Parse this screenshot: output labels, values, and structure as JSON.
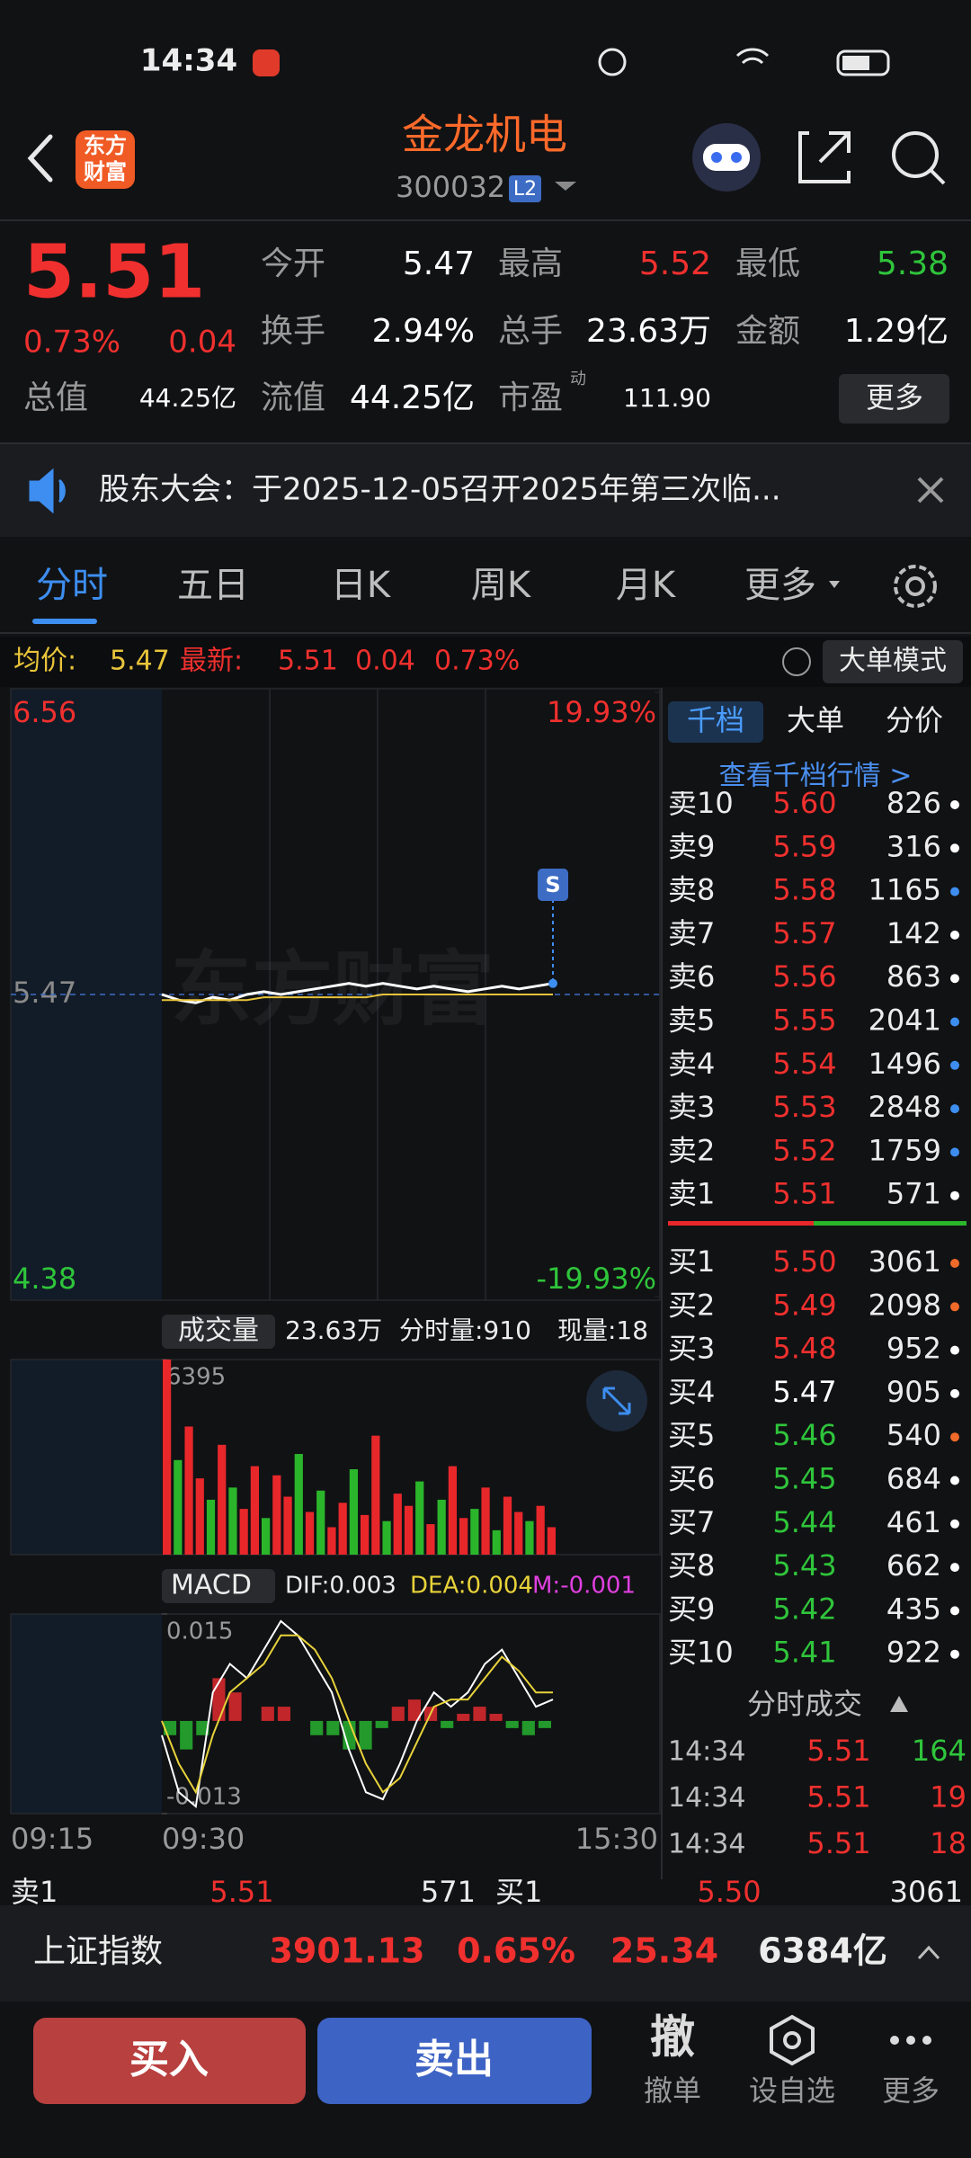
{
  "status": {
    "time": "14:34"
  },
  "header": {
    "logo_line1": "东方",
    "logo_line2": "财富",
    "title": "金龙机电",
    "code": "300032",
    "badge": "L2"
  },
  "quote": {
    "price": "5.51",
    "pct": "0.73%",
    "change": "0.04",
    "fields": [
      {
        "label": "今开",
        "value": "5.47",
        "color": "#ffffff"
      },
      {
        "label": "最高",
        "value": "5.52",
        "color": "#f0302e"
      },
      {
        "label": "最低",
        "value": "5.38",
        "color": "#2fc53b"
      },
      {
        "label": "换手",
        "value": "2.94%",
        "color": "#ffffff"
      },
      {
        "label": "总手",
        "value": "23.63万",
        "color": "#ffffff"
      },
      {
        "label": "金额",
        "value": "1.29亿",
        "color": "#ffffff"
      },
      {
        "label": "总值",
        "value": "44.25亿",
        "color": "#ffffff"
      },
      {
        "label": "流值",
        "value": "44.25亿",
        "color": "#ffffff"
      },
      {
        "label": "市盈",
        "value": "111.90",
        "color": "#ffffff",
        "sup": "动"
      }
    ],
    "more": "更多"
  },
  "notice": {
    "text": "股东大会：于2025-12-05召开2025年第三次临..."
  },
  "tabs": [
    "分时",
    "五日",
    "日K",
    "周K",
    "月K",
    "更多"
  ],
  "info": {
    "avg_label": "均价:",
    "avg": "5.47",
    "latest_label": "最新:",
    "latest": "5.51",
    "change": "0.04",
    "pct": "0.73%",
    "mode": "大单模式"
  },
  "price_chart": {
    "type": "line",
    "watermark": "东方财富",
    "signal": "S",
    "ylim": [
      4.38,
      6.56
    ],
    "yticks": [
      6.56,
      5.47,
      4.38
    ],
    "y2lim": [
      -19.93,
      19.93
    ],
    "y2ticks": [
      {
        "value": 19.93,
        "label": "19.93%"
      },
      {
        "value": -19.93,
        "label": "-19.93%"
      }
    ],
    "series": [
      {
        "name": "最新",
        "color": "#ffffff",
        "values": [
          5.47,
          5.45,
          5.44,
          5.46,
          5.45,
          5.47,
          5.48,
          5.47,
          5.48,
          5.49,
          5.5,
          5.51,
          5.5,
          5.51,
          5.5,
          5.49,
          5.5,
          5.49,
          5.48,
          5.49,
          5.5,
          5.49,
          5.5,
          5.51
        ]
      },
      {
        "name": "均价",
        "color": "#e8c43a",
        "values": [
          5.45,
          5.45,
          5.45,
          5.45,
          5.45,
          5.45,
          5.46,
          5.46,
          5.46,
          5.46,
          5.46,
          5.46,
          5.46,
          5.47,
          5.47,
          5.47,
          5.47,
          5.47,
          5.47,
          5.47,
          5.47,
          5.47,
          5.47,
          5.47
        ]
      }
    ],
    "time_labels": [
      "09:15",
      "09:30",
      "15:30"
    ]
  },
  "volume_chart": {
    "type": "bar",
    "title": "成交量",
    "total": "23.63万",
    "minute": "分时量:910",
    "current": "现量:18",
    "ylim": [
      0,
      6395
    ],
    "yticks": [
      6395
    ],
    "values": [
      6395,
      3100,
      4200,
      2500,
      1800,
      3600,
      2200,
      1500,
      2900,
      1200,
      2600,
      1900,
      3300,
      1400,
      2100,
      900,
      1700,
      2800,
      1300,
      3900,
      1100,
      2000,
      1600,
      2400,
      1000,
      1800,
      2900,
      1200,
      1500,
      2200,
      800,
      1900,
      1400,
      1100,
      1600,
      900
    ],
    "colors": [
      "#e8272b",
      "#2bb52b",
      "#e8272b",
      "#e8272b",
      "#2bb52b",
      "#e8272b",
      "#2bb52b",
      "#e8272b",
      "#e8272b",
      "#2bb52b",
      "#e8272b",
      "#e8272b",
      "#2bb52b",
      "#e8272b",
      "#2bb52b",
      "#e8272b",
      "#e8272b",
      "#2bb52b",
      "#e8272b",
      "#e8272b",
      "#2bb52b",
      "#e8272b",
      "#e8272b",
      "#2bb52b",
      "#e8272b",
      "#2bb52b",
      "#e8272b",
      "#e8272b",
      "#2bb52b",
      "#e8272b",
      "#2bb52b",
      "#e8272b",
      "#e8272b",
      "#2bb52b",
      "#e8272b",
      "#e8272b"
    ]
  },
  "macd_chart": {
    "type": "macd",
    "title": "MACD",
    "dif": "DIF:0.003",
    "dea": "DEA:0.004",
    "m": "M:-0.001",
    "ylim": [
      -0.013,
      0.015
    ],
    "yticks": [
      0.015,
      -0.013
    ],
    "hist": [
      -0.002,
      -0.004,
      -0.002,
      0.006,
      0.004,
      0,
      0.002,
      0.002,
      0,
      -0.002,
      -0.002,
      -0.004,
      -0.004,
      -0.001,
      0.002,
      0.003,
      0.002,
      -0.001,
      0.001,
      0.002,
      0.001,
      -0.001,
      -0.002,
      -0.001
    ],
    "series": [
      {
        "name": "DIF",
        "color": "#ffffff",
        "values": [
          -0.002,
          -0.01,
          -0.012,
          0.004,
          0.008,
          0.006,
          0.01,
          0.014,
          0.012,
          0.008,
          0.004,
          -0.004,
          -0.01,
          -0.011,
          -0.006,
          0.0,
          0.004,
          0.002,
          0.004,
          0.008,
          0.01,
          0.006,
          0.002,
          0.003
        ]
      },
      {
        "name": "DEA",
        "color": "#e8d33a",
        "values": [
          0.0,
          -0.006,
          -0.01,
          -0.002,
          0.004,
          0.006,
          0.008,
          0.012,
          0.012,
          0.01,
          0.006,
          0.0,
          -0.006,
          -0.01,
          -0.008,
          -0.003,
          0.002,
          0.003,
          0.003,
          0.006,
          0.009,
          0.007,
          0.004,
          0.004
        ]
      }
    ]
  },
  "book": {
    "tabs": [
      "千档",
      "大单",
      "分价"
    ],
    "link": "查看千档行情 >",
    "sell": [
      {
        "label": "卖10",
        "price": "5.60",
        "vol": "826",
        "color": "#f0302e",
        "dot": "#ffffff"
      },
      {
        "label": "卖9",
        "price": "5.59",
        "vol": "316",
        "color": "#f0302e",
        "dot": "#ffffff"
      },
      {
        "label": "卖8",
        "price": "5.58",
        "vol": "1165",
        "color": "#f0302e",
        "dot": "#3d8ef0"
      },
      {
        "label": "卖7",
        "price": "5.57",
        "vol": "142",
        "color": "#f0302e",
        "dot": "#ffffff"
      },
      {
        "label": "卖6",
        "price": "5.56",
        "vol": "863",
        "color": "#f0302e",
        "dot": "#ffffff"
      },
      {
        "label": "卖5",
        "price": "5.55",
        "vol": "2041",
        "color": "#f0302e",
        "dot": "#3d8ef0"
      },
      {
        "label": "卖4",
        "price": "5.54",
        "vol": "1496",
        "color": "#f0302e",
        "dot": "#3d8ef0"
      },
      {
        "label": "卖3",
        "price": "5.53",
        "vol": "2848",
        "color": "#f0302e",
        "dot": "#3d8ef0"
      },
      {
        "label": "卖2",
        "price": "5.52",
        "vol": "1759",
        "color": "#f0302e",
        "dot": "#3d8ef0"
      },
      {
        "label": "卖1",
        "price": "5.51",
        "vol": "571",
        "color": "#f0302e",
        "dot": "#ffffff"
      }
    ],
    "buy": [
      {
        "label": "买1",
        "price": "5.50",
        "vol": "3061",
        "color": "#f0302e",
        "dot": "#f06a2a"
      },
      {
        "label": "买2",
        "price": "5.49",
        "vol": "2098",
        "color": "#f0302e",
        "dot": "#f06a2a"
      },
      {
        "label": "买3",
        "price": "5.48",
        "vol": "952",
        "color": "#f0302e",
        "dot": "#ffffff"
      },
      {
        "label": "买4",
        "price": "5.47",
        "vol": "905",
        "color": "#ffffff",
        "dot": "#ffffff"
      },
      {
        "label": "买5",
        "price": "5.46",
        "vol": "540",
        "color": "#2fc53b",
        "dot": "#f06a2a"
      },
      {
        "label": "买6",
        "price": "5.45",
        "vol": "684",
        "color": "#2fc53b",
        "dot": "#ffffff"
      },
      {
        "label": "买7",
        "price": "5.44",
        "vol": "461",
        "color": "#2fc53b",
        "dot": "#ffffff"
      },
      {
        "label": "买8",
        "price": "5.43",
        "vol": "662",
        "color": "#2fc53b",
        "dot": "#ffffff"
      },
      {
        "label": "买9",
        "price": "5.42",
        "vol": "435",
        "color": "#2fc53b",
        "dot": "#ffffff"
      },
      {
        "label": "买10",
        "price": "5.41",
        "vol": "922",
        "color": "#2fc53b",
        "dot": "#ffffff"
      }
    ],
    "trades_title": "分时成交",
    "trades": [
      {
        "time": "14:34",
        "price": "5.51",
        "vol": "164"
      },
      {
        "time": "14:34",
        "price": "5.51",
        "vol": "19"
      },
      {
        "time": "14:34",
        "price": "5.51",
        "vol": "18"
      }
    ]
  },
  "summary": {
    "sell_label": "卖1",
    "sell_price": "5.51",
    "sell_vol": "571",
    "buy_label": "买1",
    "buy_price": "5.50",
    "buy_vol": "3061"
  },
  "index": {
    "name": "上证指数",
    "value": "3901.13",
    "pct": "0.65%",
    "change": "25.34",
    "amount": "6384亿"
  },
  "nav": {
    "buy": "买入",
    "sell": "卖出",
    "cancel_icon": "撤",
    "cancel": "撤单",
    "watch": "设自选",
    "more": "更多"
  }
}
